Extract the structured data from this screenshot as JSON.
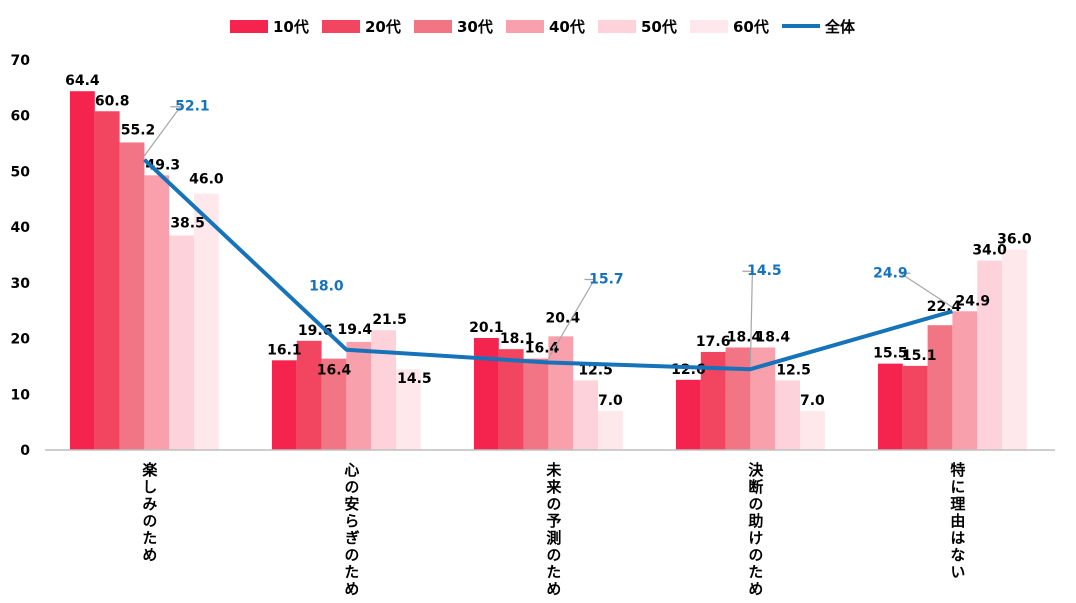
{
  "chart_data": {
    "type": "bar",
    "title": "",
    "xlabel": "",
    "ylabel": "",
    "ylim": [
      0,
      70
    ],
    "yticks": [
      0,
      10,
      20,
      30,
      40,
      50,
      60,
      70
    ],
    "grid": false,
    "legend": "top",
    "categories": [
      "楽しみのため",
      "心の安らぎのため",
      "未来の予測のため",
      "決断の助けのため",
      "特に理由はない"
    ],
    "series": [
      {
        "name": "10代",
        "color": "#F5244E",
        "values": [
          64.4,
          16.1,
          20.1,
          12.6,
          15.5
        ]
      },
      {
        "name": "20代",
        "color": "#F24560",
        "values": [
          60.8,
          19.6,
          18.1,
          17.6,
          15.1
        ]
      },
      {
        "name": "30代",
        "color": "#F27585",
        "values": [
          55.2,
          16.4,
          16.4,
          18.4,
          22.4
        ]
      },
      {
        "name": "40代",
        "color": "#F8A0AC",
        "values": [
          49.3,
          19.4,
          20.4,
          18.4,
          24.9
        ]
      },
      {
        "name": "50代",
        "color": "#FDD2DA",
        "values": [
          38.5,
          21.5,
          12.5,
          12.5,
          34.0
        ]
      },
      {
        "name": "60代",
        "color": "#FEE8EC",
        "values": [
          46.0,
          14.5,
          7.0,
          7.0,
          36.0
        ]
      }
    ],
    "line_series": {
      "name": "全体",
      "color": "#1673BA",
      "values": [
        52.1,
        18.0,
        15.7,
        14.5,
        24.9
      ]
    },
    "bar_value_labels": [
      [
        "64.4",
        "60.8",
        "55.2",
        "49.3",
        "38.5",
        "46.0"
      ],
      [
        "16.1",
        "19.6",
        "16.4",
        "19.4",
        "21.5",
        "14.5"
      ],
      [
        "20.1",
        "18.1",
        "16.4",
        "20.4",
        "12.5",
        "7.0"
      ],
      [
        "12.6",
        "17.6",
        "18.4",
        "18.4",
        "12.5",
        "7.0"
      ],
      [
        "15.5",
        "15.1",
        "22.4",
        "24.9",
        "34.0",
        "36.0"
      ]
    ],
    "line_value_labels": [
      "52.1",
      "18.0",
      "15.7",
      "14.5",
      "24.9"
    ]
  }
}
